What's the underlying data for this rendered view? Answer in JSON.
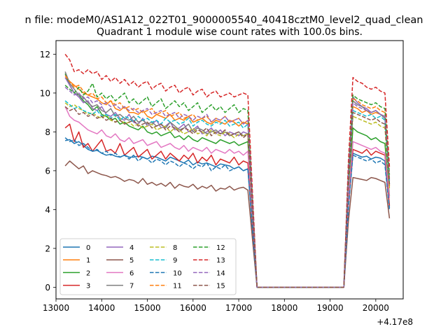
{
  "figure": {
    "suptitle": "n file: modeM0/AS1A12_022T01_9000005540_40418cztM0_level2_quad_clean"
  },
  "chart_data": {
    "type": "line",
    "title": "Quadrant 1 module wise count rates with 100.0s bins.",
    "xlabel": "",
    "ylabel": "",
    "x_offset_label": "+4.17e8",
    "xlim": [
      13000,
      20600
    ],
    "ylim": [
      -0.6,
      12.7
    ],
    "xticks": [
      13000,
      14000,
      15000,
      16000,
      17000,
      18000,
      19000,
      20000
    ],
    "xtick_labels": [
      "13000",
      "14000",
      "15000",
      "16000",
      "17000",
      "18000",
      "19000",
      "20000"
    ],
    "yticks": [
      0,
      2,
      4,
      6,
      8,
      10,
      12
    ],
    "ytick_labels": [
      "0",
      "2",
      "4",
      "6",
      "8",
      "10",
      "12"
    ],
    "grid": false,
    "legend_placement": "lower-left",
    "segments": {
      "seg1_x": [
        13200,
        13300,
        13400,
        13500,
        13600,
        13700,
        13800,
        13900,
        14000,
        14100,
        14200,
        14300,
        14400,
        14500,
        14600,
        14700,
        14800,
        14900,
        15000,
        15100,
        15200,
        15300,
        15400,
        15500,
        15600,
        15700,
        15800,
        15900,
        16000,
        16100,
        16200,
        16300,
        16400,
        16500,
        16600,
        16700,
        16800,
        16900,
        17000,
        17100,
        17200
      ],
      "drop_x": [
        17300,
        17400
      ],
      "flat_x": [
        17400,
        19300
      ],
      "rise_x": [
        19300,
        19400
      ],
      "seg2_x": [
        19500,
        19600,
        19700,
        19800,
        19900,
        20000,
        20100,
        20200,
        20300
      ]
    },
    "series": [
      {
        "name": "0",
        "color": "#1f77b4",
        "style": "solid",
        "seg1": [
          7.55,
          7.6,
          7.4,
          7.5,
          7.3,
          7.1,
          7.0,
          7.05,
          6.9,
          6.8,
          6.85,
          6.75,
          6.7,
          6.8,
          6.7,
          6.7,
          6.75,
          6.7,
          6.6,
          6.75,
          6.7,
          6.6,
          6.5,
          6.7,
          6.6,
          6.5,
          6.4,
          6.55,
          6.3,
          6.45,
          6.35,
          6.4,
          6.3,
          6.2,
          6.35,
          6.3,
          6.25,
          6.1,
          6.2,
          6.0,
          6.1
        ],
        "seg2": [
          6.9,
          6.8,
          6.7,
          6.75,
          6.6,
          6.7,
          6.65,
          6.5,
          4.1
        ]
      },
      {
        "name": "1",
        "color": "#ff7f0e",
        "style": "solid",
        "seg1": [
          10.8,
          10.6,
          10.4,
          10.2,
          10.0,
          9.9,
          9.8,
          9.7,
          9.5,
          9.4,
          9.6,
          9.2,
          9.1,
          9.3,
          9.0,
          9.0,
          8.9,
          9.1,
          8.8,
          8.7,
          8.9,
          8.8,
          8.7,
          8.9,
          8.6,
          8.7,
          8.6,
          8.8,
          8.5,
          8.6,
          8.7,
          8.5,
          8.4,
          8.6,
          8.5,
          8.4,
          8.6,
          8.5,
          8.3,
          8.5,
          8.4
        ],
        "seg2": [
          9.3,
          9.2,
          9.0,
          9.1,
          8.9,
          9.0,
          8.9,
          8.8,
          5.2
        ]
      },
      {
        "name": "2",
        "color": "#2ca02c",
        "style": "solid",
        "seg1": [
          11.0,
          10.4,
          10.0,
          9.9,
          9.6,
          9.4,
          9.1,
          9.3,
          8.9,
          8.8,
          8.6,
          8.7,
          8.4,
          8.5,
          8.3,
          8.2,
          8.1,
          8.3,
          8.0,
          7.9,
          8.0,
          7.8,
          7.9,
          8.0,
          7.7,
          7.8,
          7.6,
          7.8,
          7.6,
          7.5,
          7.7,
          7.6,
          7.5,
          7.4,
          7.6,
          7.5,
          7.4,
          7.5,
          7.3,
          7.4,
          7.5
        ],
        "seg2": [
          8.2,
          8.0,
          7.9,
          7.8,
          7.6,
          7.7,
          7.5,
          7.4,
          4.7
        ]
      },
      {
        "name": "3",
        "color": "#d62728",
        "style": "solid",
        "seg1": [
          8.2,
          8.4,
          7.5,
          8.0,
          7.2,
          7.4,
          7.0,
          7.3,
          7.6,
          7.0,
          7.1,
          6.9,
          7.4,
          6.8,
          7.0,
          7.2,
          6.7,
          6.9,
          7.1,
          6.6,
          6.8,
          7.0,
          6.6,
          6.9,
          6.7,
          6.5,
          6.8,
          6.6,
          6.9,
          6.4,
          6.7,
          6.5,
          6.8,
          6.3,
          6.6,
          6.5,
          6.4,
          6.7,
          6.3,
          6.5,
          6.4
        ],
        "seg2": [
          7.1,
          7.0,
          6.9,
          7.1,
          6.8,
          7.0,
          6.9,
          6.8,
          4.2
        ]
      },
      {
        "name": "4",
        "color": "#9467bd",
        "style": "solid",
        "seg1": [
          10.8,
          10.4,
          10.0,
          9.8,
          9.5,
          9.6,
          9.2,
          9.1,
          9.3,
          8.9,
          8.8,
          9.0,
          8.7,
          8.6,
          8.9,
          8.5,
          8.4,
          8.7,
          8.3,
          8.4,
          8.6,
          8.2,
          8.3,
          8.5,
          8.1,
          8.2,
          8.4,
          8.0,
          8.1,
          8.3,
          7.9,
          8.0,
          8.2,
          7.9,
          8.1,
          7.8,
          8.0,
          7.9,
          7.8,
          8.0,
          7.9
        ],
        "seg2": [
          9.8,
          9.5,
          9.3,
          9.2,
          9.0,
          9.1,
          8.9,
          8.8,
          5.5
        ]
      },
      {
        "name": "5",
        "color": "#8c564b",
        "style": "solid",
        "seg1": [
          6.25,
          6.5,
          6.3,
          6.1,
          6.25,
          5.85,
          6.0,
          5.9,
          5.8,
          5.75,
          5.65,
          5.7,
          5.6,
          5.45,
          5.55,
          5.5,
          5.35,
          5.6,
          5.3,
          5.4,
          5.25,
          5.35,
          5.2,
          5.4,
          5.1,
          5.3,
          5.2,
          5.15,
          5.3,
          5.05,
          5.2,
          5.1,
          5.25,
          4.95,
          5.1,
          5.05,
          5.2,
          5.0,
          5.1,
          5.15,
          5.0
        ],
        "seg2": [
          5.65,
          5.6,
          5.55,
          5.5,
          5.65,
          5.6,
          5.5,
          5.4,
          3.55
        ]
      },
      {
        "name": "6",
        "color": "#e377c2",
        "style": "solid",
        "seg1": [
          9.3,
          8.8,
          8.6,
          8.5,
          8.3,
          8.1,
          8.0,
          7.9,
          8.1,
          7.8,
          7.7,
          7.9,
          7.6,
          7.5,
          7.7,
          7.4,
          7.5,
          7.6,
          7.3,
          7.4,
          7.5,
          7.2,
          7.3,
          7.4,
          7.2,
          7.1,
          7.3,
          7.0,
          7.2,
          7.1,
          7.0,
          7.2,
          6.9,
          7.1,
          7.0,
          6.9,
          7.1,
          6.9,
          7.0,
          6.8,
          7.0
        ],
        "seg2": [
          7.5,
          7.4,
          7.3,
          7.2,
          7.1,
          7.2,
          7.0,
          6.9,
          4.6
        ]
      },
      {
        "name": "7",
        "color": "#7f7f7f",
        "style": "solid",
        "seg1": [
          11.1,
          10.5,
          10.2,
          9.9,
          9.8,
          9.5,
          9.3,
          9.4,
          9.1,
          9.0,
          9.2,
          8.8,
          8.9,
          8.7,
          8.6,
          8.8,
          8.5,
          8.6,
          8.4,
          8.5,
          8.3,
          8.4,
          8.2,
          8.5,
          8.3,
          8.1,
          8.2,
          8.4,
          8.0,
          8.2,
          8.1,
          7.9,
          8.0,
          8.1,
          7.9,
          8.0,
          7.8,
          7.9,
          8.0,
          7.8,
          7.9
        ],
        "seg2": [
          9.6,
          9.4,
          9.3,
          9.1,
          9.0,
          9.1,
          8.9,
          8.7,
          5.3
        ]
      },
      {
        "name": "8",
        "color": "#bcbd22",
        "style": "dashed",
        "seg1": [
          9.5,
          9.3,
          9.4,
          9.2,
          9.1,
          8.9,
          9.0,
          8.8,
          8.7,
          8.9,
          8.6,
          8.5,
          8.7,
          8.4,
          8.5,
          8.3,
          8.4,
          8.2,
          8.3,
          8.4,
          8.1,
          8.2,
          8.3,
          8.0,
          8.2,
          8.1,
          7.9,
          8.0,
          8.2,
          7.9,
          8.0,
          7.8,
          8.1,
          7.9,
          7.8,
          8.0,
          7.9,
          7.7,
          7.9,
          7.8,
          7.9
        ],
        "seg2": [
          8.8,
          8.7,
          8.6,
          8.5,
          8.4,
          8.5,
          8.3,
          8.2,
          5.1
        ]
      },
      {
        "name": "9",
        "color": "#17becf",
        "style": "dashed",
        "seg1": [
          9.6,
          9.4,
          9.2,
          9.3,
          9.1,
          9.0,
          8.9,
          9.1,
          8.8,
          8.9,
          8.7,
          8.9,
          8.6,
          8.8,
          8.7,
          8.5,
          8.8,
          8.6,
          8.7,
          8.5,
          8.6,
          8.4,
          8.7,
          8.5,
          8.6,
          8.4,
          8.5,
          8.7,
          8.3,
          8.5,
          8.6,
          8.4,
          8.3,
          8.5,
          8.4,
          8.6,
          8.3,
          8.4,
          8.5,
          8.2,
          8.4
        ],
        "seg2": [
          9.1,
          9.0,
          8.9,
          8.8,
          8.9,
          8.7,
          8.8,
          8.6,
          5.4
        ]
      },
      {
        "name": "10",
        "color": "#1f77b4",
        "style": "dashed",
        "seg1": [
          7.7,
          7.5,
          7.6,
          7.3,
          7.4,
          7.2,
          7.0,
          7.1,
          6.9,
          7.0,
          6.8,
          6.9,
          6.7,
          6.8,
          6.6,
          6.8,
          6.5,
          6.7,
          6.6,
          6.4,
          6.6,
          6.5,
          6.3,
          6.5,
          6.4,
          6.2,
          6.4,
          6.3,
          6.1,
          6.3,
          6.2,
          6.4,
          6.0,
          6.2,
          6.1,
          6.3,
          6.0,
          6.1,
          6.2,
          6.0,
          6.1
        ],
        "seg2": [
          6.8,
          6.7,
          6.6,
          6.5,
          6.6,
          6.4,
          6.5,
          6.3,
          4.0
        ]
      },
      {
        "name": "11",
        "color": "#ff7f0e",
        "style": "dashed",
        "seg1": [
          10.9,
          10.6,
          10.3,
          10.4,
          10.1,
          9.9,
          10.0,
          9.7,
          9.8,
          9.5,
          9.6,
          9.4,
          9.5,
          9.2,
          9.3,
          9.1,
          9.2,
          9.0,
          9.1,
          9.2,
          8.9,
          9.0,
          9.1,
          8.8,
          8.9,
          9.0,
          8.7,
          8.8,
          8.9,
          8.6,
          8.7,
          8.8,
          8.5,
          8.7,
          8.6,
          8.8,
          8.5,
          8.6,
          8.7,
          8.4,
          8.6
        ],
        "seg2": [
          9.7,
          9.6,
          9.4,
          9.3,
          9.2,
          9.3,
          9.1,
          9.0,
          5.6
        ]
      },
      {
        "name": "12",
        "color": "#2ca02c",
        "style": "dashed",
        "seg1": [
          10.4,
          10.2,
          10.0,
          10.3,
          9.9,
          10.1,
          10.5,
          9.8,
          10.0,
          9.7,
          9.9,
          9.6,
          9.8,
          10.0,
          9.5,
          9.7,
          9.4,
          9.6,
          9.8,
          9.3,
          9.5,
          9.7,
          9.2,
          9.4,
          9.6,
          9.3,
          9.5,
          9.1,
          9.3,
          9.5,
          9.0,
          9.2,
          9.4,
          9.1,
          9.3,
          9.0,
          9.2,
          9.4,
          9.0,
          9.2,
          9.1
        ],
        "seg2": [
          9.9,
          9.7,
          9.6,
          9.5,
          9.4,
          9.5,
          9.3,
          9.2,
          5.8
        ]
      },
      {
        "name": "13",
        "color": "#d62728",
        "style": "dashed",
        "seg1": [
          12.0,
          11.7,
          11.1,
          11.2,
          11.0,
          11.2,
          11.0,
          11.1,
          10.7,
          10.9,
          10.6,
          10.8,
          10.5,
          10.7,
          10.4,
          10.6,
          10.3,
          10.5,
          10.6,
          10.2,
          10.4,
          10.5,
          10.1,
          10.3,
          10.4,
          10.0,
          10.2,
          10.3,
          9.9,
          10.1,
          10.2,
          9.8,
          10.0,
          10.1,
          9.8,
          9.9,
          10.0,
          9.8,
          9.9,
          10.0,
          9.9
        ],
        "seg2": [
          10.8,
          10.6,
          10.5,
          10.3,
          10.2,
          10.3,
          10.1,
          10.0,
          6.2
        ]
      },
      {
        "name": "14",
        "color": "#9467bd",
        "style": "dashed",
        "seg1": [
          10.3,
          10.1,
          9.9,
          10.0,
          9.7,
          9.8,
          9.5,
          9.6,
          9.4,
          9.5,
          9.3,
          9.4,
          9.2,
          9.3,
          9.1,
          9.2,
          9.0,
          9.1,
          9.2,
          8.9,
          9.0,
          9.1,
          8.8,
          8.9,
          9.0,
          8.7,
          8.9,
          8.8,
          8.6,
          8.8,
          8.7,
          8.9,
          8.5,
          8.7,
          8.6,
          8.8,
          8.5,
          8.6,
          8.7,
          8.4,
          8.6
        ],
        "seg2": [
          9.5,
          9.3,
          9.2,
          9.1,
          9.0,
          9.1,
          8.9,
          8.8,
          5.5
        ]
      },
      {
        "name": "15",
        "color": "#8c564b",
        "style": "dashed",
        "seg1": [
          9.3,
          9.1,
          9.2,
          8.9,
          9.0,
          8.8,
          8.9,
          8.7,
          8.8,
          8.6,
          8.7,
          8.5,
          8.6,
          8.4,
          8.5,
          8.6,
          8.3,
          8.4,
          8.5,
          8.2,
          8.3,
          8.4,
          8.1,
          8.3,
          8.2,
          8.0,
          8.2,
          8.1,
          7.9,
          8.1,
          8.0,
          8.2,
          7.8,
          8.0,
          7.9,
          8.1,
          7.8,
          7.9,
          8.0,
          7.7,
          7.9
        ],
        "seg2": [
          9.0,
          8.9,
          8.8,
          8.7,
          8.6,
          8.7,
          8.5,
          8.4,
          5.3
        ]
      }
    ]
  }
}
